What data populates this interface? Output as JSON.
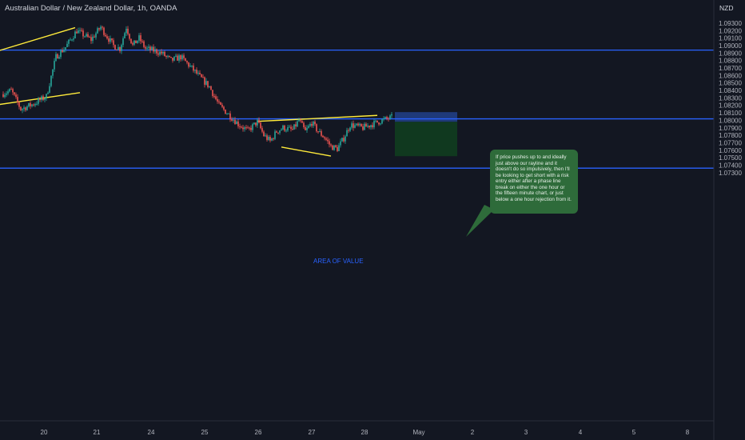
{
  "header": {
    "symbol_title": "Australian Dollar / New Zealand Dollar, 1h, OANDA",
    "quote_currency": "NZD"
  },
  "annotation": {
    "note_text": "If price pushes up to and ideally just above our rayline and it doesn't do so impulsively, then I'll be looking to get short with a risk entry either after a phase line break on either the one hour or the fifteen minute chart, or just below a one hour rejection from it.",
    "zone_label": "AREA OF VALUE"
  },
  "colors": {
    "background": "#131722",
    "bull": "#26a69a",
    "bear": "#ef5350",
    "level_line": "#2962ff",
    "trend_line": "#ffeb3b",
    "risk_zone": "#1f3a7a",
    "reward_zone": "#10391f",
    "note_bg": "#2e6b3a",
    "axis_text": "#b2b5be"
  },
  "chart_data": {
    "type": "candlestick",
    "title": "Australian Dollar / New Zealand Dollar, 1h, OANDA",
    "ylabel": "NZD",
    "ylim": [
      1.0726,
      1.0936
    ],
    "y_ticks": [
      "1.09300",
      "1.09200",
      "1.09100",
      "1.09000",
      "1.08900",
      "1.08800",
      "1.08700",
      "1.08600",
      "1.08500",
      "1.08400",
      "1.08300",
      "1.08200",
      "1.08100",
      "1.08000",
      "1.07900",
      "1.07800",
      "1.07700",
      "1.07600",
      "1.07500",
      "1.07400",
      "1.07300"
    ],
    "x_ticks": [
      "20",
      "21",
      "24",
      "25",
      "26",
      "27",
      "28",
      "May",
      "2",
      "3",
      "4",
      "5",
      "8"
    ],
    "grid": false,
    "anchors": [
      {
        "t": 0,
        "p": 1.0835
      },
      {
        "t": 6,
        "p": 1.084
      },
      {
        "t": 12,
        "p": 1.0815
      },
      {
        "t": 20,
        "p": 1.0822
      },
      {
        "t": 28,
        "p": 1.0832
      },
      {
        "t": 34,
        "p": 1.0885
      },
      {
        "t": 40,
        "p": 1.0898
      },
      {
        "t": 47,
        "p": 1.092
      },
      {
        "t": 56,
        "p": 1.0908
      },
      {
        "t": 62,
        "p": 1.0925
      },
      {
        "t": 66,
        "p": 1.0912
      },
      {
        "t": 70,
        "p": 1.09
      },
      {
        "t": 74,
        "p": 1.0896
      },
      {
        "t": 78,
        "p": 1.0925
      },
      {
        "t": 82,
        "p": 1.09
      },
      {
        "t": 86,
        "p": 1.091
      },
      {
        "t": 90,
        "p": 1.0896
      },
      {
        "t": 96,
        "p": 1.0893
      },
      {
        "t": 100,
        "p": 1.089
      },
      {
        "t": 106,
        "p": 1.088
      },
      {
        "t": 112,
        "p": 1.0885
      },
      {
        "t": 118,
        "p": 1.0872
      },
      {
        "t": 124,
        "p": 1.0858
      },
      {
        "t": 130,
        "p": 1.0845
      },
      {
        "t": 136,
        "p": 1.082
      },
      {
        "t": 142,
        "p": 1.0808
      },
      {
        "t": 148,
        "p": 1.0795
      },
      {
        "t": 154,
        "p": 1.0786
      },
      {
        "t": 160,
        "p": 1.0798
      },
      {
        "t": 164,
        "p": 1.078
      },
      {
        "t": 168,
        "p": 1.0772
      },
      {
        "t": 172,
        "p": 1.0785
      },
      {
        "t": 176,
        "p": 1.079
      },
      {
        "t": 182,
        "p": 1.0787
      },
      {
        "t": 186,
        "p": 1.08
      },
      {
        "t": 190,
        "p": 1.0785
      },
      {
        "t": 194,
        "p": 1.0797
      },
      {
        "t": 198,
        "p": 1.0785
      },
      {
        "t": 202,
        "p": 1.0777
      },
      {
        "t": 206,
        "p": 1.0765
      },
      {
        "t": 210,
        "p": 1.0762
      },
      {
        "t": 214,
        "p": 1.0776
      },
      {
        "t": 218,
        "p": 1.0794
      },
      {
        "t": 222,
        "p": 1.0792
      },
      {
        "t": 226,
        "p": 1.079
      },
      {
        "t": 232,
        "p": 1.0795
      },
      {
        "t": 238,
        "p": 1.08
      },
      {
        "t": 244,
        "p": 1.0804
      }
    ],
    "horizontal_levels": [
      1.0894,
      1.0802,
      1.0736
    ],
    "trend_lines": [
      {
        "from": {
          "t": -2,
          "p": 1.0893
        },
        "to": {
          "t": 46,
          "p": 1.0924
        }
      },
      {
        "from": {
          "t": -2,
          "p": 1.0821
        },
        "to": {
          "t": 49,
          "p": 1.0837
        }
      },
      {
        "from": {
          "t": 160,
          "p": 1.07986
        },
        "to": {
          "t": 235,
          "p": 1.08066
        }
      },
      {
        "from": {
          "t": 175,
          "p": 1.07642
        },
        "to": {
          "t": 206,
          "p": 1.07522
        }
      }
    ],
    "position": {
      "entry": 1.0798,
      "stop": 1.0811,
      "target": 1.0752,
      "t_start": 246,
      "t_end": 285
    }
  }
}
